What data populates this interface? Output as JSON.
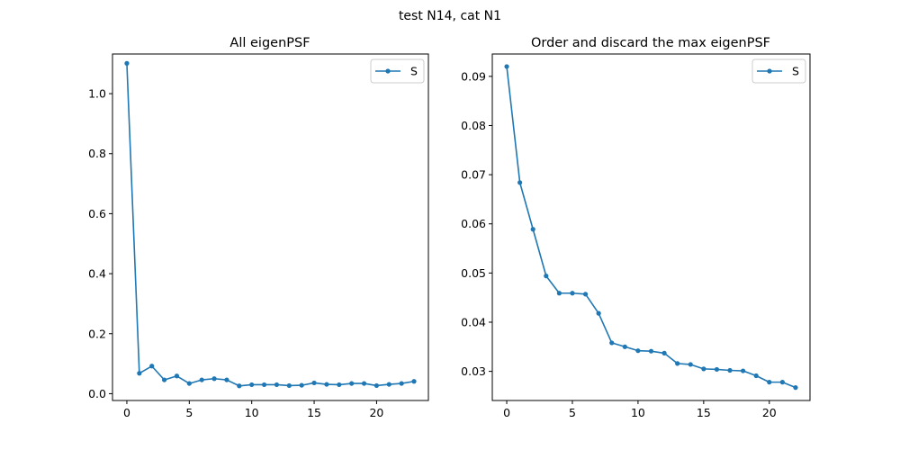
{
  "figure": {
    "suptitle": "test N14, cat N1"
  },
  "colors": {
    "series": "#1f77b4",
    "axes": "#000000",
    "legend_border": "#cccccc"
  },
  "chart_data": [
    {
      "type": "line",
      "title": "All eigenPSF",
      "xlabel": "",
      "ylabel": "",
      "marker": "circle",
      "grid": false,
      "legend_position": "top-right",
      "xlim": [
        -1.15,
        24.15
      ],
      "ylim": [
        -0.0227,
        1.1322
      ],
      "xticks": [
        0,
        5,
        10,
        15,
        20
      ],
      "yticks": [
        0.0,
        0.2,
        0.4,
        0.6,
        0.8,
        1.0
      ],
      "ytick_labels": [
        "0.0",
        "0.2",
        "0.4",
        "0.6",
        "0.8",
        "1.0"
      ],
      "series": [
        {
          "name": "S",
          "x": [
            0,
            1,
            2,
            3,
            4,
            5,
            6,
            7,
            8,
            9,
            10,
            11,
            12,
            13,
            14,
            15,
            16,
            17,
            18,
            19,
            20,
            21,
            22,
            23
          ],
          "values": [
            1.101,
            0.068,
            0.092,
            0.046,
            0.059,
            0.034,
            0.046,
            0.05,
            0.046,
            0.026,
            0.03,
            0.03,
            0.03,
            0.027,
            0.028,
            0.036,
            0.031,
            0.03,
            0.034,
            0.034,
            0.027,
            0.031,
            0.034,
            0.041
          ]
        }
      ]
    },
    {
      "type": "line",
      "title": "Order and discard the max eigenPSF",
      "xlabel": "",
      "ylabel": "",
      "marker": "circle",
      "grid": false,
      "legend_position": "top-right",
      "xlim": [
        -1.1,
        23.1
      ],
      "ylim": [
        0.02407,
        0.09455
      ],
      "xticks": [
        0,
        5,
        10,
        15,
        20
      ],
      "yticks": [
        0.03,
        0.04,
        0.05,
        0.06,
        0.07,
        0.08,
        0.09
      ],
      "ytick_labels": [
        "0.03",
        "0.04",
        "0.05",
        "0.06",
        "0.07",
        "0.08",
        "0.09"
      ],
      "series": [
        {
          "name": "S",
          "x": [
            0,
            1,
            2,
            3,
            4,
            5,
            6,
            7,
            8,
            9,
            10,
            11,
            12,
            13,
            14,
            15,
            16,
            17,
            18,
            19,
            20,
            21,
            22
          ],
          "values": [
            0.092,
            0.0684,
            0.0589,
            0.0494,
            0.0459,
            0.0459,
            0.0457,
            0.0418,
            0.0358,
            0.035,
            0.0342,
            0.0341,
            0.0337,
            0.0316,
            0.0314,
            0.0305,
            0.0304,
            0.0302,
            0.0301,
            0.0291,
            0.0278,
            0.0278,
            0.0267
          ]
        }
      ]
    }
  ]
}
